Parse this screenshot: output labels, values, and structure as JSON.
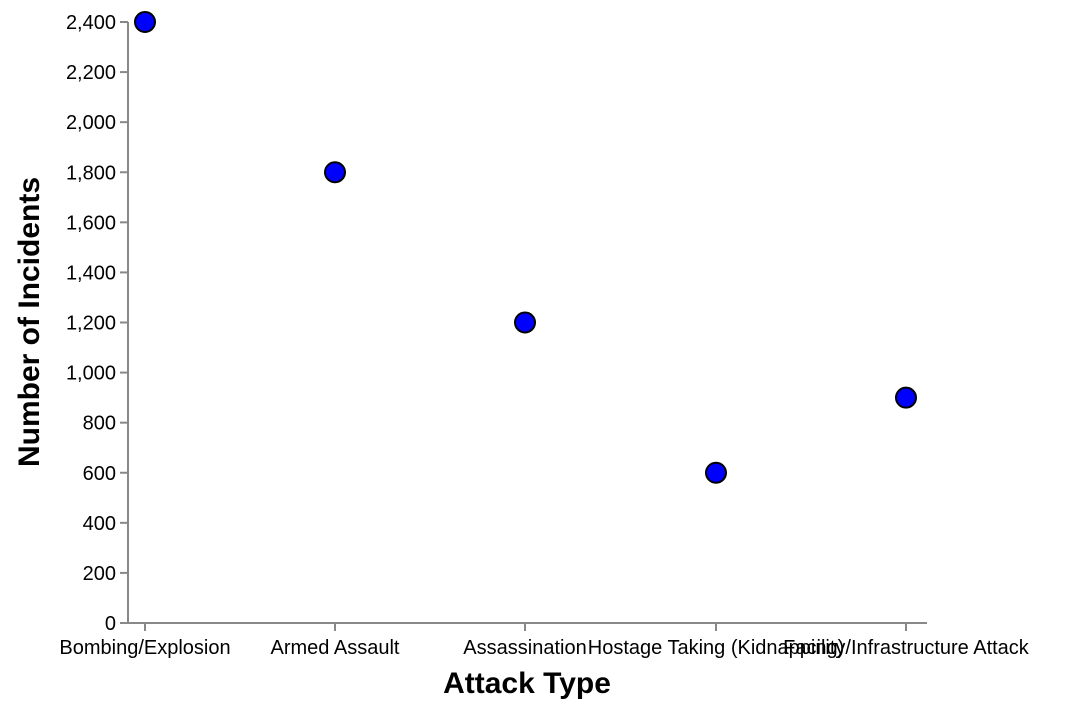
{
  "chart_data": {
    "type": "scatter",
    "title": "",
    "xlabel": "Attack Type",
    "ylabel": "Number of Incidents",
    "categories": [
      "Bombing/Explosion",
      "Armed Assault",
      "Assassination",
      "Hostage Taking (Kidnapping)",
      "Facility/Infrastructure Attack"
    ],
    "values": [
      2400,
      1800,
      1200,
      600,
      900
    ],
    "ylim": [
      0,
      2400
    ],
    "yticks": [
      0,
      200,
      400,
      600,
      800,
      1000,
      1200,
      1400,
      1600,
      1800,
      2000,
      2200,
      2400
    ],
    "ytick_labels": [
      "0",
      "200",
      "400",
      "600",
      "800",
      "1,000",
      "1,200",
      "1,400",
      "1,600",
      "1,800",
      "2,000",
      "2,200",
      "2,400"
    ],
    "grid": false,
    "point_color": "#0000ff",
    "point_stroke": "#000000"
  }
}
